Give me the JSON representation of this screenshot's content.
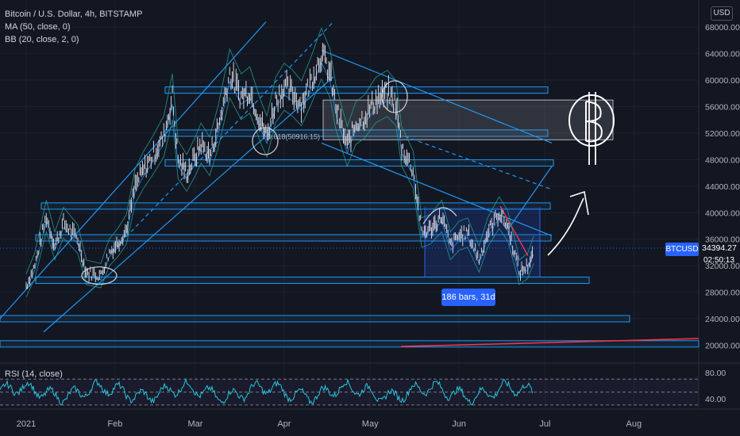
{
  "header": {
    "title": "Bitcoin / U.S. Dollar, 4h, BITSTAMP",
    "ma": "MA (50, close, 0)",
    "bb": "BB (20, close, 2, 0)"
  },
  "currency": "USD",
  "price_tag": {
    "symbol": "BTCUSD",
    "price": "34394.27",
    "countdown": "02:50:13"
  },
  "bars_label": "186 bars, 31d",
  "rsi_label": "RSI (14, close)",
  "fib_labels": [
    "0.618(50916.15)"
  ],
  "colors": {
    "background": "#131722",
    "candle": "#d1d4dc",
    "line": "#2196f3",
    "box": "#2962ff",
    "ma": "#26a69a",
    "red_line": "#f23645"
  },
  "chart_data": {
    "type": "line",
    "y_axis": {
      "ticks": [
        68000,
        64000,
        60000,
        56000,
        52000,
        48000,
        44000,
        40000,
        36000,
        32000,
        28000,
        24000,
        20000
      ],
      "tick_labels": [
        "68000.00",
        "64000.00",
        "60000.00",
        "56000.00",
        "52000.00",
        "48000.00",
        "44000.00",
        "40000.00",
        "36000.00",
        "32000.00",
        "28000.00",
        "24000.00",
        "20000.00"
      ],
      "range": [
        18500,
        69500
      ]
    },
    "x_axis": {
      "ticks": [
        "2021",
        "Feb",
        "Mar",
        "Apr",
        "May",
        "Jun",
        "Jul",
        "Aug"
      ],
      "dates": [
        "2021-01-01",
        "2021-02-01",
        "2021-03-01",
        "2021-04-01",
        "2021-05-01",
        "2021-06-01",
        "2021-07-01",
        "2021-08-01"
      ]
    },
    "series": [
      {
        "type": "price",
        "points": [
          [
            "2021-01-01",
            29000
          ],
          [
            "2021-01-04",
            32000
          ],
          [
            "2021-01-08",
            39500
          ],
          [
            "2021-01-11",
            35000
          ],
          [
            "2021-01-14",
            38500
          ],
          [
            "2021-01-19",
            36000
          ],
          [
            "2021-01-22",
            31000
          ],
          [
            "2021-01-27",
            30500
          ],
          [
            "2021-01-30",
            34000
          ],
          [
            "2021-02-02",
            35500
          ],
          [
            "2021-02-05",
            37500
          ],
          [
            "2021-02-08",
            44000
          ],
          [
            "2021-02-11",
            46500
          ],
          [
            "2021-02-14",
            48500
          ],
          [
            "2021-02-18",
            51500
          ],
          [
            "2021-02-21",
            57500
          ],
          [
            "2021-02-23",
            48000
          ],
          [
            "2021-02-26",
            46000
          ],
          [
            "2021-03-01",
            48500
          ],
          [
            "2021-03-03",
            50500
          ],
          [
            "2021-03-06",
            48500
          ],
          [
            "2021-03-09",
            53000
          ],
          [
            "2021-03-13",
            61000
          ],
          [
            "2021-03-17",
            57500
          ],
          [
            "2021-03-20",
            58500
          ],
          [
            "2021-03-24",
            53500
          ],
          [
            "2021-03-26",
            51500
          ],
          [
            "2021-03-29",
            57000
          ],
          [
            "2021-04-01",
            59000
          ],
          [
            "2021-04-04",
            58000
          ],
          [
            "2021-04-07",
            56500
          ],
          [
            "2021-04-10",
            59500
          ],
          [
            "2021-04-14",
            64000
          ],
          [
            "2021-04-17",
            61000
          ],
          [
            "2021-04-19",
            56000
          ],
          [
            "2021-04-23",
            50000
          ],
          [
            "2021-04-26",
            53500
          ],
          [
            "2021-04-29",
            54500
          ],
          [
            "2021-05-03",
            57000
          ],
          [
            "2021-05-07",
            58000
          ],
          [
            "2021-05-10",
            56500
          ],
          [
            "2021-05-12",
            50000
          ],
          [
            "2021-05-16",
            46500
          ],
          [
            "2021-05-19",
            37000
          ],
          [
            "2021-05-22",
            37500
          ],
          [
            "2021-05-24",
            38500
          ],
          [
            "2021-05-26",
            39500
          ],
          [
            "2021-05-29",
            35000
          ],
          [
            "2021-06-01",
            36500
          ],
          [
            "2021-06-04",
            37000
          ],
          [
            "2021-06-08",
            33000
          ],
          [
            "2021-06-11",
            37000
          ],
          [
            "2021-06-15",
            40000
          ],
          [
            "2021-06-18",
            38000
          ],
          [
            "2021-06-21",
            33000
          ],
          [
            "2021-06-22",
            31000
          ],
          [
            "2021-06-25",
            32000
          ],
          [
            "2021-06-27",
            34394
          ]
        ]
      }
    ],
    "horizontal_levels": [
      58500,
      52000,
      47500,
      41000,
      36200,
      29800,
      24000,
      20200
    ],
    "rsi_axis": {
      "ticks": [
        80,
        40
      ],
      "tick_labels": [
        "80.00",
        "40.00"
      ]
    },
    "annotations": [
      "186 bars, 31d"
    ]
  }
}
